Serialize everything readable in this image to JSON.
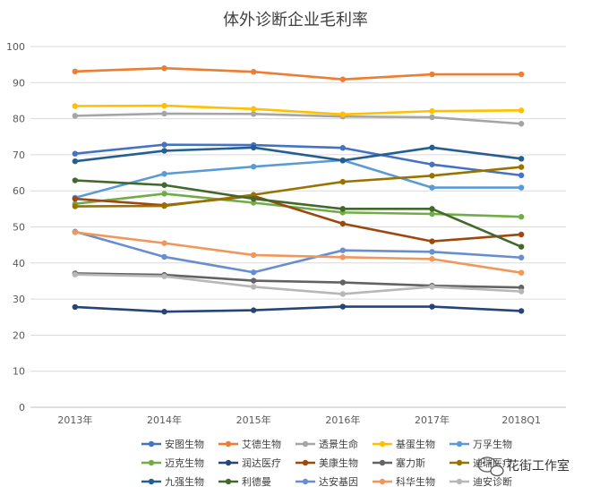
{
  "chart_data": {
    "type": "line",
    "title": "体外诊断企业毛利率",
    "xlabel": "",
    "ylabel": "",
    "categories": [
      "2013年",
      "2014年",
      "2015年",
      "2016年",
      "2017年",
      "2018Q1"
    ],
    "ylim": [
      0,
      100
    ],
    "yticks": [
      0,
      10,
      20,
      30,
      40,
      50,
      60,
      70,
      80,
      90,
      100
    ],
    "grid": true,
    "legend_position": "bottom",
    "series": [
      {
        "name": "安图生物",
        "color": "#4472C4",
        "values": [
          70.3,
          72.8,
          72.7,
          71.9,
          67.3,
          64.3
        ]
      },
      {
        "name": "艾德生物",
        "color": "#ED7D31",
        "values": [
          93.1,
          94.0,
          93.0,
          90.9,
          92.3,
          92.3
        ]
      },
      {
        "name": "透景生命",
        "color": "#A5A5A5",
        "values": [
          80.8,
          81.4,
          81.3,
          80.6,
          80.4,
          78.6
        ]
      },
      {
        "name": "基蛋生物",
        "color": "#FFC000",
        "values": [
          83.5,
          83.6,
          82.7,
          81.2,
          82.1,
          82.3
        ]
      },
      {
        "name": "万孚生物",
        "color": "#5B9BD5",
        "values": [
          58.1,
          64.7,
          66.7,
          68.5,
          60.9,
          60.9
        ]
      },
      {
        "name": "迈克生物",
        "color": "#70AD47",
        "values": [
          56.4,
          59.2,
          56.7,
          54.0,
          53.6,
          52.8
        ]
      },
      {
        "name": "润达医疗",
        "color": "#264478",
        "values": [
          27.8,
          26.5,
          26.9,
          27.9,
          27.9,
          26.7
        ]
      },
      {
        "name": "美康生物",
        "color": "#9E480E",
        "values": [
          57.8,
          56.0,
          58.6,
          50.9,
          46.0,
          47.9
        ]
      },
      {
        "name": "塞力斯",
        "color": "#636363",
        "values": [
          37.1,
          36.7,
          35.1,
          34.6,
          33.7,
          33.2
        ]
      },
      {
        "name": "迪瑞医疗",
        "color": "#997300",
        "values": [
          55.7,
          55.8,
          58.9,
          62.5,
          64.2,
          66.6
        ]
      },
      {
        "name": "九强生物",
        "color": "#255E91",
        "values": [
          68.2,
          71.1,
          72.0,
          68.4,
          72.0,
          68.9
        ]
      },
      {
        "name": "利德曼",
        "color": "#43682B",
        "values": [
          62.9,
          61.6,
          57.8,
          55.0,
          55.0,
          44.5
        ]
      },
      {
        "name": "达安基因",
        "color": "#698ED0",
        "values": [
          48.7,
          41.7,
          37.4,
          43.5,
          43.1,
          41.5
        ]
      },
      {
        "name": "科华生物",
        "color": "#F1975A",
        "values": [
          48.5,
          45.5,
          42.2,
          41.6,
          41.1,
          37.3
        ]
      },
      {
        "name": "迪安诊断",
        "color": "#B7B7B7",
        "values": [
          36.8,
          36.3,
          33.4,
          31.4,
          33.4,
          32.1
        ]
      }
    ]
  },
  "watermark": {
    "text": "花街工作室",
    "icon": "wechat-icon"
  }
}
